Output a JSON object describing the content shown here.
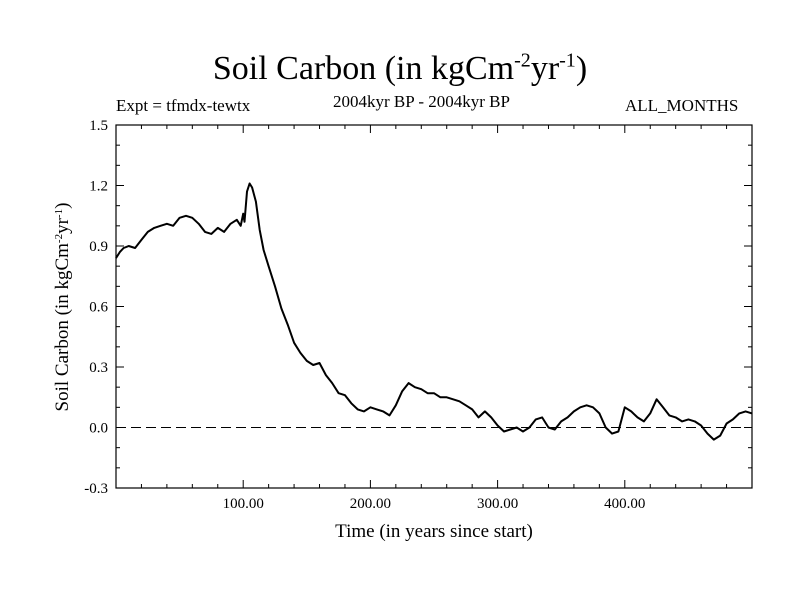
{
  "chart_data": {
    "type": "line",
    "title_main": "Soil Carbon (in kgCm",
    "title_sup1": "-2",
    "title_mid": "yr",
    "title_sup2": "-1",
    "title_end": ")",
    "expt": "Expt = tfmdx-tewtx",
    "period": "2004kyr BP - 2004kyr BP",
    "months": "ALL_MONTHS",
    "xlabel": "Time (in years since start)",
    "ylabel_main": "Soil Carbon (in kgCm",
    "ylabel_sup1": "-2",
    "ylabel_mid": "yr",
    "ylabel_sup2": "-1",
    "ylabel_end": ")",
    "xlim": [
      0,
      500
    ],
    "ylim": [
      -0.3,
      1.5
    ],
    "xticks": [
      100,
      200,
      300,
      400
    ],
    "xtick_labels": [
      "100.00",
      "200.00",
      "300.00",
      "400.00"
    ],
    "yticks": [
      -0.3,
      0.0,
      0.3,
      0.6,
      0.9,
      1.2,
      1.5
    ],
    "ytick_labels": [
      "-0.3",
      "0.0",
      "0.3",
      "0.6",
      "0.9",
      "1.2",
      "1.5"
    ],
    "reference_line": 0.0,
    "series": [
      {
        "name": "Soil Carbon",
        "x": [
          0,
          3,
          6,
          10,
          15,
          20,
          25,
          30,
          35,
          40,
          45,
          50,
          55,
          60,
          65,
          70,
          75,
          80,
          85,
          90,
          95,
          98,
          100,
          101,
          103,
          105,
          107,
          110,
          113,
          116,
          120,
          125,
          130,
          135,
          140,
          145,
          150,
          155,
          160,
          165,
          170,
          175,
          180,
          185,
          190,
          195,
          200,
          205,
          210,
          215,
          220,
          225,
          230,
          235,
          240,
          245,
          250,
          255,
          260,
          265,
          270,
          275,
          280,
          285,
          290,
          295,
          300,
          305,
          310,
          315,
          320,
          325,
          330,
          335,
          340,
          345,
          350,
          355,
          360,
          365,
          370,
          375,
          380,
          385,
          390,
          395,
          400,
          405,
          410,
          415,
          420,
          425,
          430,
          435,
          440,
          445,
          450,
          455,
          460,
          465,
          470,
          475,
          480,
          485,
          490,
          495,
          500
        ],
        "y": [
          0.84,
          0.87,
          0.89,
          0.9,
          0.89,
          0.93,
          0.97,
          0.99,
          1.0,
          1.01,
          1.0,
          1.04,
          1.05,
          1.04,
          1.01,
          0.97,
          0.96,
          0.99,
          0.97,
          1.01,
          1.03,
          1.0,
          1.06,
          1.02,
          1.17,
          1.21,
          1.19,
          1.12,
          0.98,
          0.88,
          0.8,
          0.7,
          0.59,
          0.51,
          0.42,
          0.37,
          0.33,
          0.31,
          0.32,
          0.26,
          0.22,
          0.17,
          0.16,
          0.12,
          0.09,
          0.08,
          0.1,
          0.09,
          0.08,
          0.06,
          0.11,
          0.18,
          0.22,
          0.2,
          0.19,
          0.17,
          0.17,
          0.15,
          0.15,
          0.14,
          0.13,
          0.11,
          0.09,
          0.05,
          0.08,
          0.05,
          0.01,
          -0.02,
          -0.01,
          0.0,
          -0.02,
          0.0,
          0.04,
          0.05,
          0.0,
          -0.01,
          0.03,
          0.05,
          0.08,
          0.1,
          0.11,
          0.1,
          0.07,
          0.0,
          -0.03,
          -0.02,
          0.1,
          0.08,
          0.05,
          0.03,
          0.07,
          0.14,
          0.1,
          0.06,
          0.05,
          0.03,
          0.04,
          0.03,
          0.01,
          -0.03,
          -0.06,
          -0.04,
          0.02,
          0.04,
          0.07,
          0.08,
          0.07
        ]
      }
    ]
  }
}
